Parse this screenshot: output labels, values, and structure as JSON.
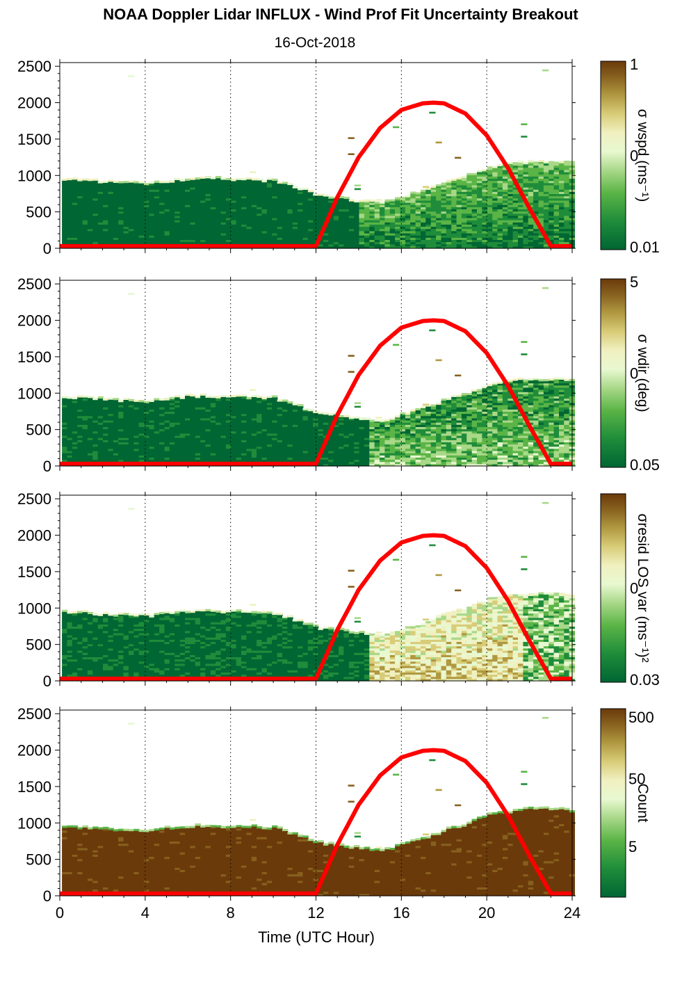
{
  "title": "NOAA Doppler Lidar INFLUX - Wind Prof Fit Uncertainty Breakout",
  "subtitle": "16-Oct-2018",
  "xlabel": "Time (UTC Hour)",
  "colors": {
    "sun_curve": "#ff0000",
    "colormap": [
      "#006633",
      "#1e8c3a",
      "#5ab446",
      "#a8d888",
      "#e8f8d0",
      "#f0f0c0",
      "#d8cc78",
      "#b09840",
      "#86601e",
      "#6b3a0a"
    ],
    "background_fill_bottom_panel": "#6b3a0a"
  },
  "chart_data": [
    {
      "type": "heatmap",
      "panel": 1,
      "x_range": [
        0,
        24
      ],
      "y_range": [
        0,
        2550
      ],
      "x_ticks": [
        "0",
        "4",
        "8",
        "12",
        "16",
        "20",
        "24"
      ],
      "y_ticks": [
        "0",
        "500",
        "1000",
        "1500",
        "2000",
        "2500"
      ],
      "grid": "vertical dotted at 4,8,12,16,20,24",
      "colorbar": {
        "label": "σ wspd (ms⁻¹)",
        "ticks": [
          "1",
          "0",
          "0.01"
        ],
        "scale": "log"
      },
      "top_height_profile": {
        "hours": [
          0,
          2,
          4,
          6,
          8,
          10,
          12,
          13,
          14,
          15,
          16,
          17,
          18,
          19,
          20,
          21,
          22,
          23,
          23.8
        ],
        "heights_m": [
          950,
          900,
          880,
          950,
          940,
          920,
          720,
          680,
          640,
          600,
          700,
          780,
          900,
          980,
          1100,
          1150,
          1180,
          1180,
          1160
        ]
      },
      "texture": "uniform-low",
      "sun_curve": {
        "hours": [
          12,
          13,
          14,
          15,
          16,
          17,
          17.5,
          18,
          19,
          20,
          21,
          22,
          23,
          24
        ],
        "heights_m": [
          30,
          700,
          1250,
          1650,
          1900,
          1990,
          2000,
          1990,
          1850,
          1550,
          1100,
          550,
          30,
          30
        ]
      }
    },
    {
      "type": "heatmap",
      "panel": 2,
      "x_range": [
        0,
        24
      ],
      "y_range": [
        0,
        2550
      ],
      "x_ticks": [
        "0",
        "4",
        "8",
        "12",
        "16",
        "20",
        "24"
      ],
      "y_ticks": [
        "0",
        "500",
        "1000",
        "1500",
        "2000",
        "2500"
      ],
      "grid": "vertical dotted at 4,8,12,16,20,24",
      "colorbar": {
        "label": "σ wdir (deg)",
        "ticks": [
          "5",
          "0",
          "0.05"
        ],
        "scale": "log"
      },
      "top_height_profile": {
        "hours": [
          0,
          2,
          4,
          6,
          8,
          10,
          12,
          13,
          14,
          15,
          16,
          17,
          18,
          19,
          20,
          21,
          22,
          23,
          23.8
        ],
        "heights_m": [
          950,
          900,
          880,
          950,
          940,
          920,
          720,
          680,
          640,
          600,
          700,
          780,
          900,
          980,
          1100,
          1150,
          1180,
          1180,
          1160
        ]
      },
      "texture": "moderate-day",
      "sun_curve": {
        "hours": [
          12,
          13,
          14,
          15,
          16,
          17,
          17.5,
          18,
          19,
          20,
          21,
          22,
          23,
          24
        ],
        "heights_m": [
          30,
          700,
          1250,
          1650,
          1900,
          1990,
          2000,
          1990,
          1850,
          1550,
          1100,
          550,
          30,
          30
        ]
      }
    },
    {
      "type": "heatmap",
      "panel": 3,
      "x_range": [
        0,
        24
      ],
      "y_range": [
        0,
        2550
      ],
      "x_ticks": [
        "0",
        "4",
        "8",
        "12",
        "16",
        "20",
        "24"
      ],
      "y_ticks": [
        "0",
        "500",
        "1000",
        "1500",
        "2000",
        "2500"
      ],
      "grid": "vertical dotted at 4,8,12,16,20,24",
      "colorbar": {
        "label": "σresid LOS var (ms⁻¹)²",
        "ticks": [
          "0",
          "0.03"
        ],
        "scale": "log"
      },
      "top_height_profile": {
        "hours": [
          0,
          2,
          4,
          6,
          8,
          10,
          12,
          13,
          14,
          15,
          16,
          17,
          18,
          19,
          20,
          21,
          22,
          23,
          23.8
        ],
        "heights_m": [
          950,
          900,
          880,
          950,
          940,
          920,
          720,
          680,
          640,
          600,
          700,
          780,
          900,
          980,
          1100,
          1150,
          1180,
          1180,
          1160
        ]
      },
      "texture": "high-day",
      "sun_curve": {
        "hours": [
          12,
          13,
          14,
          15,
          16,
          17,
          17.5,
          18,
          19,
          20,
          21,
          22,
          23,
          24
        ],
        "heights_m": [
          30,
          700,
          1250,
          1650,
          1900,
          1990,
          2000,
          1990,
          1850,
          1550,
          1100,
          550,
          30,
          30
        ]
      }
    },
    {
      "type": "heatmap",
      "panel": 4,
      "x_range": [
        0,
        24
      ],
      "y_range": [
        0,
        2550
      ],
      "x_ticks": [
        "0",
        "4",
        "8",
        "12",
        "16",
        "20",
        "24"
      ],
      "y_ticks": [
        "0",
        "500",
        "1000",
        "1500",
        "2000",
        "2500"
      ],
      "grid": "vertical dotted at 4,8,12,16,20,24",
      "colorbar": {
        "label": "Count",
        "ticks": [
          "500",
          "50",
          "5"
        ],
        "scale": "log"
      },
      "top_height_profile": {
        "hours": [
          0,
          2,
          4,
          6,
          8,
          10,
          12,
          13,
          14,
          15,
          16,
          17,
          18,
          19,
          20,
          21,
          22,
          23,
          23.8
        ],
        "heights_m": [
          950,
          900,
          880,
          950,
          940,
          920,
          720,
          680,
          640,
          600,
          700,
          780,
          900,
          980,
          1100,
          1150,
          1180,
          1180,
          1160
        ]
      },
      "texture": "counts-high",
      "sun_curve": {
        "hours": [
          12,
          13,
          14,
          15,
          16,
          17,
          17.5,
          18,
          19,
          20,
          21,
          22,
          23,
          24
        ],
        "heights_m": [
          30,
          700,
          1250,
          1650,
          1900,
          1990,
          2000,
          1990,
          1850,
          1550,
          1100,
          550,
          30,
          30
        ]
      }
    }
  ]
}
